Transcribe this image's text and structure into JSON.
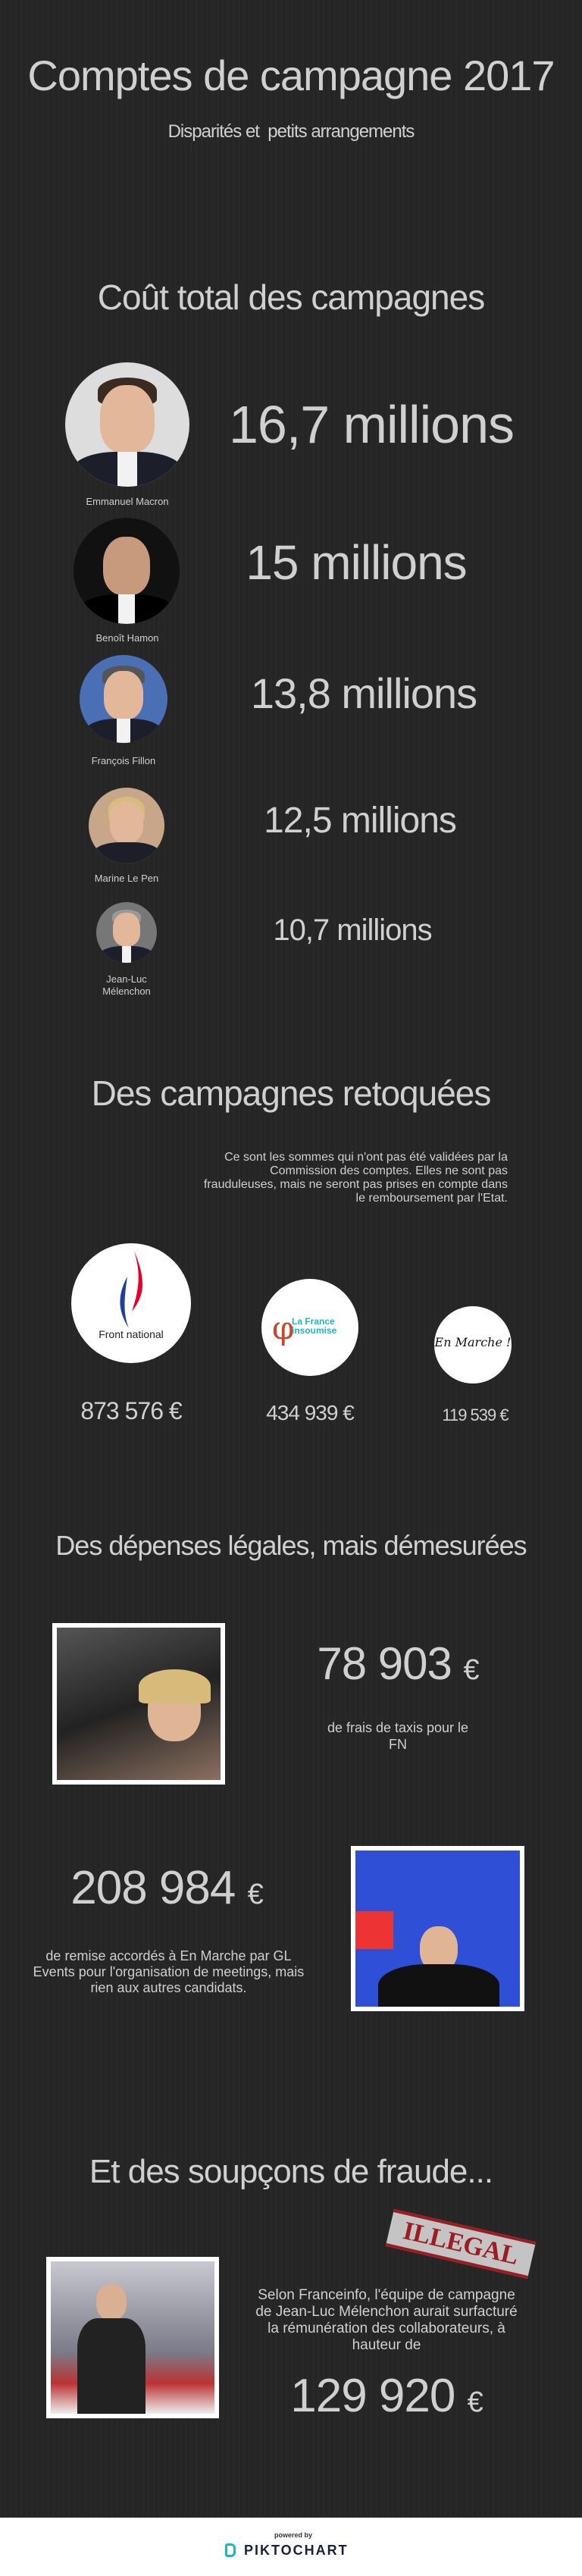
{
  "header": {
    "title": "Comptes de campagne 2017",
    "subtitle": "Disparités et  petits arrangements"
  },
  "costs": {
    "heading": "Coût total des campagnes",
    "items": [
      {
        "name": "Emmanuel Macron",
        "amount": "16,7 millions"
      },
      {
        "name": "Benoît Hamon",
        "amount": "15 millions"
      },
      {
        "name": "François Fillon",
        "amount": "13,8 millions"
      },
      {
        "name": "Marine Le Pen",
        "amount": "12,5 millions"
      },
      {
        "name": "Jean-Luc\nMélenchon",
        "amount": "10,7 millions"
      }
    ]
  },
  "rejected": {
    "heading": "Des campagnes retoquées",
    "text": "Ce sont les sommes qui n'ont pas été validées par la Commission des comptes. Elles ne sont pas frauduleuses, mais ne seront pas prises en compte dans le remboursement par l'Etat.",
    "parties": [
      {
        "logo_text": "Front national",
        "amount": "873 576 €"
      },
      {
        "logo_text": "La France insoumise",
        "amount": "434 939 €"
      },
      {
        "logo_text": "En Marche !",
        "amount": "119 539 €"
      }
    ]
  },
  "legal": {
    "heading": "Des dépenses légales, mais démesurées",
    "taxi": {
      "amount": "78 903",
      "currency": "€",
      "text": "de frais de taxis pour le FN"
    },
    "gl": {
      "amount": "208 984",
      "currency": "€",
      "text": "de remise accordés à En Marche par GL Events pour l'organisation de meetings, mais rien aux autres candidats."
    }
  },
  "fraud": {
    "heading": "Et des soupçons de fraude...",
    "stamp": "ILLEGAL",
    "text": "Selon Franceinfo, l'équipe de campagne de Jean-Luc Mélenchon aurait surfacturé la rémunération des collaborateurs, à hauteur de",
    "amount": "129 920",
    "currency": "€"
  },
  "footer": {
    "powered_by": "powered by",
    "brand": "PIKTOCHART"
  },
  "colors": {
    "background": "#262626",
    "text": "#d0d0d0",
    "stamp_red": "#9e1b22",
    "brand_teal": "#1fb5c4"
  }
}
